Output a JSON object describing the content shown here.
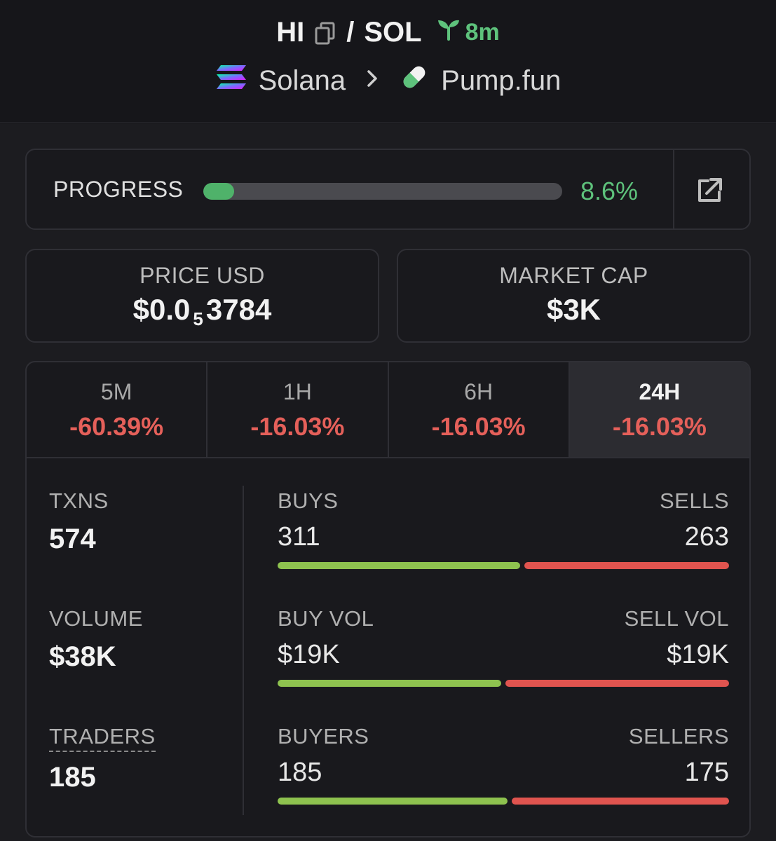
{
  "header": {
    "token": "HI",
    "separator": "/",
    "quote": "SOL",
    "age": "8m",
    "chain": "Solana",
    "dex": "Pump.fun"
  },
  "progress": {
    "label": "PROGRESS",
    "percent": 8.6,
    "percent_text": "8.6%"
  },
  "price": {
    "label": "PRICE USD",
    "prefix": "$0.0",
    "zeros": "5",
    "digits": "3784"
  },
  "market_cap": {
    "label": "MARKET CAP",
    "value": "$3K"
  },
  "tabs": [
    {
      "label": "5M",
      "value": "-60.39%"
    },
    {
      "label": "1H",
      "value": "-16.03%"
    },
    {
      "label": "6H",
      "value": "-16.03%"
    },
    {
      "label": "24H",
      "value": "-16.03%",
      "active": true
    }
  ],
  "metrics": {
    "txns": {
      "label": "TXNS",
      "value": "574"
    },
    "volume": {
      "label": "VOLUME",
      "value": "$38K"
    },
    "traders": {
      "label": "TRADERS",
      "value": "185"
    }
  },
  "splits": {
    "txns": {
      "buy_label": "BUYS",
      "sell_label": "SELLS",
      "buy_value": "311",
      "sell_value": "263",
      "buy_ratio": 0.542
    },
    "volume": {
      "buy_label": "BUY VOL",
      "sell_label": "SELL VOL",
      "buy_value": "$19K",
      "sell_value": "$19K",
      "buy_ratio": 0.5
    },
    "traders": {
      "buy_label": "BUYERS",
      "sell_label": "SELLERS",
      "buy_value": "185",
      "sell_value": "175",
      "buy_ratio": 0.514
    }
  },
  "colors": {
    "positive": "#5ec27c",
    "negative": "#e5605a",
    "buy_bar": "#8ec24f",
    "sell_bar": "#e0544f"
  },
  "icons": {
    "copy": "copy-icon",
    "age": "seedling-icon",
    "chain": "solana-logo-icon",
    "dex": "pill-icon",
    "external": "external-link-icon"
  }
}
